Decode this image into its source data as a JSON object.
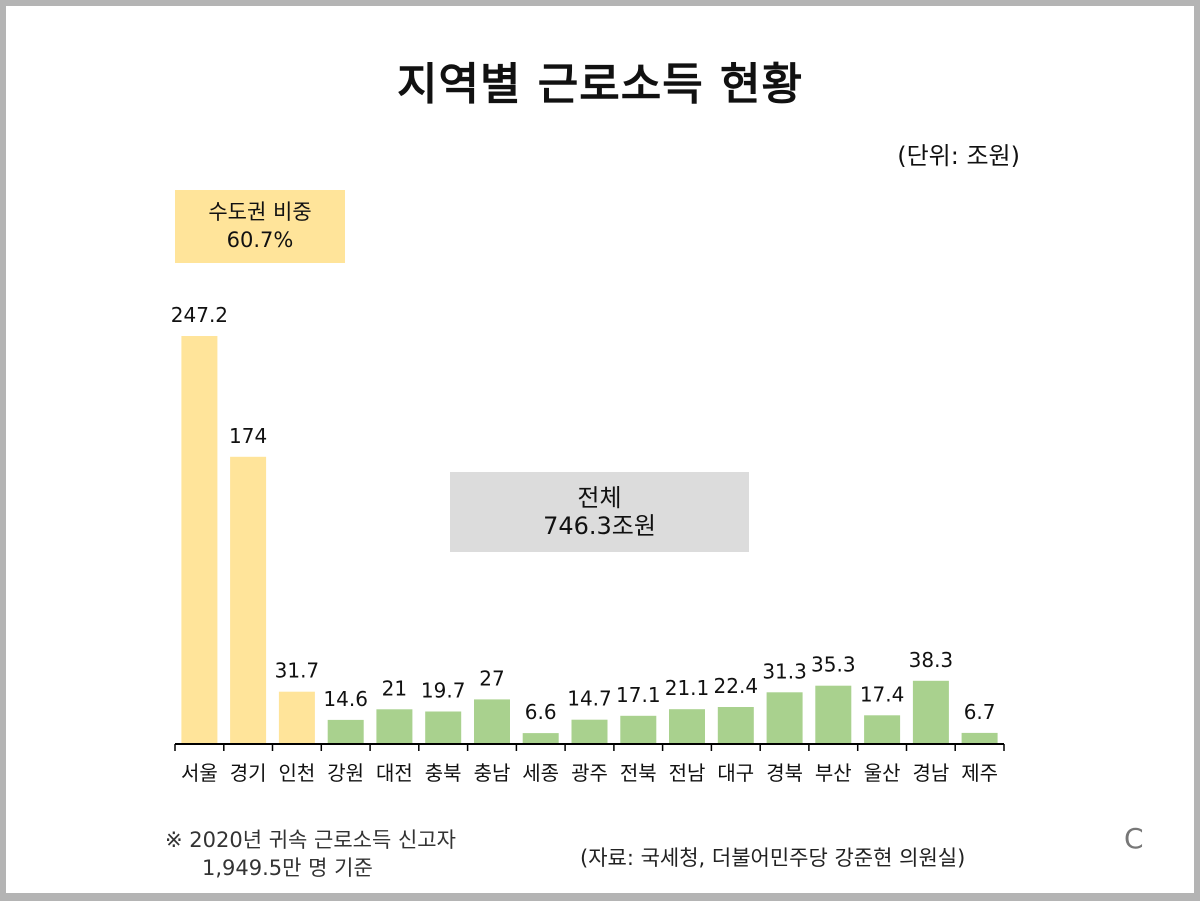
{
  "title": "지역별 근로소득 현황",
  "unit_label": "(단위: 조원)",
  "capital_box": {
    "line1": "수도권 비중",
    "line2": "60.7%"
  },
  "total_box": {
    "line1": "전체",
    "line2": "746.3조원"
  },
  "note": {
    "line1": "※ 2020년 귀속 근로소득 신고자",
    "line2": "1,949.5만 명 기준"
  },
  "source": "(자료: 국세청, 더불어민주당 강준현 의원실)",
  "corner_mark": "C",
  "colors": {
    "capital": "#ffe49a",
    "other": "#a9d18e",
    "axis": "#000000",
    "total_box": "#dcdcdc"
  },
  "chart_data": {
    "type": "bar",
    "categories": [
      "서울",
      "경기",
      "인천",
      "강원",
      "대전",
      "충북",
      "충남",
      "세종",
      "광주",
      "전북",
      "전남",
      "대구",
      "경북",
      "부산",
      "울산",
      "경남",
      "제주"
    ],
    "values": [
      247.2,
      174,
      31.7,
      14.6,
      21,
      19.7,
      27,
      6.6,
      14.7,
      17.1,
      21.1,
      22.4,
      31.3,
      35.3,
      17.4,
      38.3,
      6.7
    ],
    "value_labels": [
      "247.2",
      "174",
      "31.7",
      "14.6",
      "21",
      "19.7",
      "27",
      "6.6",
      "14.7",
      "17.1",
      "21.1",
      "22.4",
      "31.3",
      "35.3",
      "17.4",
      "38.3",
      "6.7"
    ],
    "capital_region": [
      "서울",
      "경기",
      "인천"
    ],
    "ylim": [
      0,
      247.2
    ],
    "grid": false,
    "title": "지역별 근로소득 현황"
  }
}
